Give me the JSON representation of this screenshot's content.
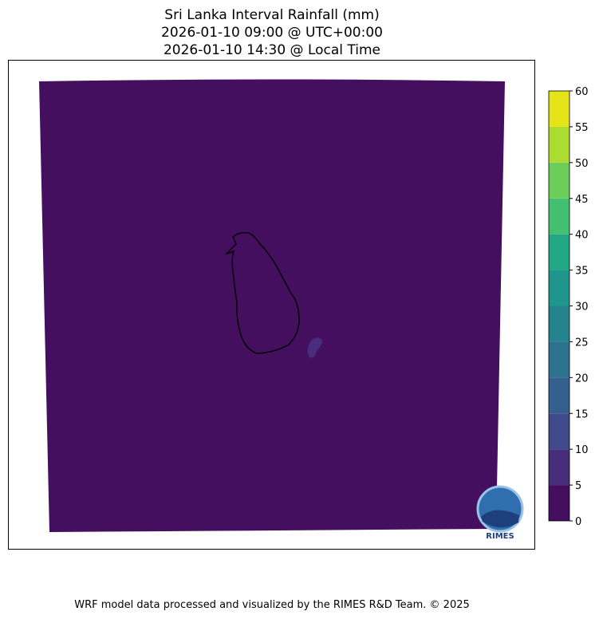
{
  "chart_data": {
    "type": "heatmap",
    "title": [
      "Sri Lanka Interval Rainfall (mm)",
      "2026-01-10 09:00 @ UTC+00:00",
      "2026-01-10 14:30 @ Local Time"
    ],
    "colorbar": {
      "levels": [
        0,
        5,
        10,
        15,
        20,
        25,
        30,
        35,
        40,
        45,
        50,
        55,
        60
      ],
      "tick_labels": [
        "0",
        "5",
        "10",
        "15",
        "20",
        "25",
        "30",
        "35",
        "40",
        "45",
        "50",
        "55",
        "60"
      ],
      "colors": [
        "#440f5f",
        "#472d7b",
        "#3e4a89",
        "#355f8d",
        "#2c718e",
        "#25838e",
        "#1f958b",
        "#22a884",
        "#43bf71",
        "#6ccd59",
        "#addc30",
        "#e5e419"
      ]
    },
    "field": {
      "background_value_range": [
        0,
        5
      ],
      "local_patch_value_range": [
        5,
        10
      ],
      "note_region": "southeast of Sri Lanka"
    },
    "logo_text": "RIMES"
  },
  "footer": "WRF model data processed and visualized by the RIMES R&D Team. © 2025"
}
